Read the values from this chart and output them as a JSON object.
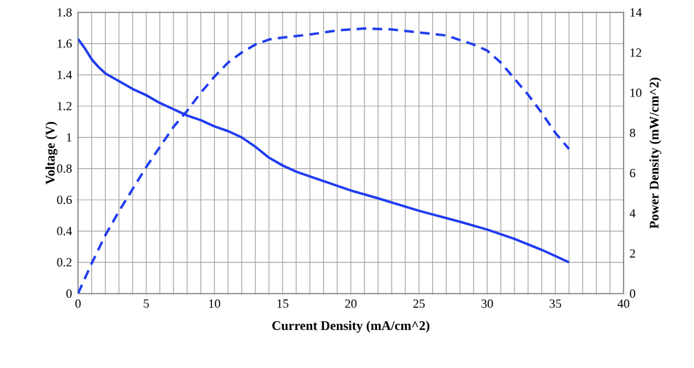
{
  "chart_data": {
    "type": "line",
    "xlabel": "Current Density (mA/cm^2)",
    "ylabel": "Voltage (V)",
    "y2label": "Power Density (mW/cm^2)",
    "xlim": [
      0,
      40
    ],
    "ylim": [
      0,
      1.8
    ],
    "y2lim": [
      0,
      14
    ],
    "xticks": [
      0,
      {
        "value": 1,
        "label": null
      },
      {
        "value": 2,
        "label": null
      },
      {
        "value": 3,
        "label": null
      },
      {
        "value": 4,
        "label": null
      },
      5,
      {
        "value": 6,
        "label": null
      },
      {
        "value": 7,
        "label": null
      },
      {
        "value": 8,
        "label": null
      },
      {
        "value": 9,
        "label": null
      },
      10,
      {
        "value": 11,
        "label": null
      },
      {
        "value": 12,
        "label": null
      },
      {
        "value": 13,
        "label": null
      },
      {
        "value": 14,
        "label": null
      },
      15,
      {
        "value": 16,
        "label": null
      },
      {
        "value": 17,
        "label": null
      },
      {
        "value": 18,
        "label": null
      },
      {
        "value": 19,
        "label": null
      },
      20,
      {
        "value": 21,
        "label": null
      },
      {
        "value": 22,
        "label": null
      },
      {
        "value": 23,
        "label": null
      },
      {
        "value": 24,
        "label": null
      },
      25,
      {
        "value": 26,
        "label": null
      },
      {
        "value": 27,
        "label": null
      },
      {
        "value": 28,
        "label": null
      },
      {
        "value": 29,
        "label": null
      },
      30,
      {
        "value": 31,
        "label": null
      },
      {
        "value": 32,
        "label": null
      },
      {
        "value": 33,
        "label": null
      },
      {
        "value": 34,
        "label": null
      },
      35,
      {
        "value": 36,
        "label": null
      },
      {
        "value": 37,
        "label": null
      },
      {
        "value": 38,
        "label": null
      },
      {
        "value": 39,
        "label": null
      },
      40
    ],
    "yticks": [
      0,
      0.2,
      0.4,
      0.6,
      0.8,
      1,
      1.2,
      1.4,
      1.6,
      1.8
    ],
    "y2ticks": [
      0,
      2,
      4,
      6,
      8,
      10,
      12,
      14
    ],
    "grid": true,
    "marker": "none",
    "series": [
      {
        "color": "#1f3cf0",
        "axis": "y",
        "line_style": "solid",
        "x": [
          0,
          0.5,
          1,
          1.5,
          2,
          3,
          4,
          5,
          6,
          7,
          8,
          9,
          10,
          11,
          12,
          13,
          14,
          15,
          16,
          17,
          18,
          20,
          22,
          25,
          28,
          30,
          32,
          34,
          36
        ],
        "values": [
          1.63,
          1.57,
          1.5,
          1.45,
          1.41,
          1.36,
          1.31,
          1.27,
          1.22,
          1.18,
          1.14,
          1.11,
          1.07,
          1.04,
          1.0,
          0.94,
          0.87,
          0.82,
          0.78,
          0.75,
          0.72,
          0.66,
          0.61,
          0.53,
          0.46,
          0.41,
          0.35,
          0.28,
          0.2
        ]
      },
      {
        "color": "#1f3cf0",
        "axis": "y2",
        "line_style": "dashed",
        "x": [
          0,
          1,
          2,
          3,
          4,
          5,
          6,
          7,
          8,
          9,
          10,
          11,
          12,
          13,
          14,
          15,
          17,
          19,
          21,
          23,
          25,
          27,
          29,
          30,
          31,
          32,
          33,
          34,
          35,
          36
        ],
        "values": [
          0,
          1.5,
          2.9,
          4.1,
          5.2,
          6.3,
          7.3,
          8.3,
          9.1,
          10.0,
          10.8,
          11.5,
          12.0,
          12.4,
          12.65,
          12.75,
          12.9,
          13.1,
          13.2,
          13.15,
          13.0,
          12.85,
          12.4,
          12.1,
          11.5,
          10.7,
          9.9,
          9.0,
          8.0,
          7.2
        ]
      }
    ]
  }
}
